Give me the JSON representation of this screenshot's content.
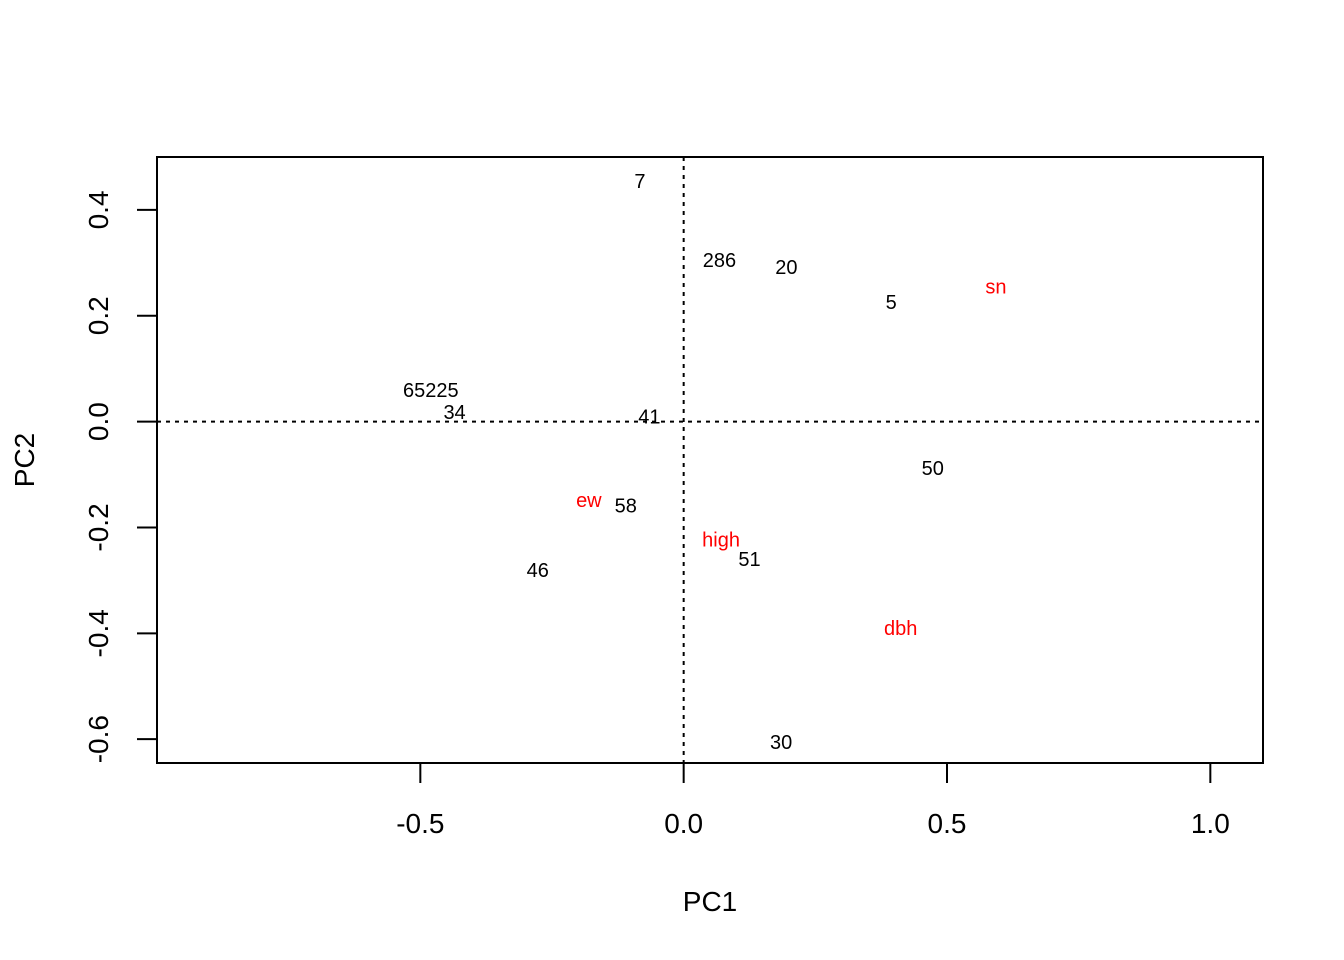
{
  "chart_data": {
    "type": "scatter",
    "title": "",
    "xlabel": "PC1",
    "ylabel": "PC2",
    "xlim": [
      -1.0,
      1.1
    ],
    "ylim": [
      -0.645,
      0.5
    ],
    "x_ticks": [
      -0.5,
      0.0,
      0.5,
      1.0
    ],
    "x_tick_labels": [
      "-0.5",
      "0.0",
      "0.5",
      "1.0"
    ],
    "y_ticks": [
      -0.6,
      -0.4,
      -0.2,
      0.0,
      0.2,
      0.4
    ],
    "y_tick_labels": [
      "-0.6",
      "-0.4",
      "-0.2",
      "0.0",
      "0.2",
      "0.4"
    ],
    "reference_lines": {
      "x": 0,
      "y": 0,
      "style": "dotted"
    },
    "colors": {
      "observation": "#000000",
      "variable": "#ff0000"
    },
    "series": [
      {
        "points": [
          {
            "label": "7",
            "x": -0.083,
            "y": 0.455
          },
          {
            "label": "286",
            "x": 0.068,
            "y": 0.305
          },
          {
            "label": "20",
            "x": 0.195,
            "y": 0.292
          },
          {
            "label": "5",
            "x": 0.394,
            "y": 0.226
          },
          {
            "label": "65225",
            "x": -0.48,
            "y": 0.06
          },
          {
            "label": "34",
            "x": -0.435,
            "y": 0.018
          },
          {
            "label": "41",
            "x": -0.065,
            "y": 0.01
          },
          {
            "label": "50",
            "x": 0.473,
            "y": -0.088
          },
          {
            "label": "58",
            "x": -0.11,
            "y": -0.158
          },
          {
            "label": "51",
            "x": 0.125,
            "y": -0.26
          },
          {
            "label": "46",
            "x": -0.277,
            "y": -0.28
          },
          {
            "label": "30",
            "x": 0.185,
            "y": -0.605
          }
        ]
      },
      {
        "points": [
          {
            "label": "sn",
            "x": 0.593,
            "y": 0.255
          },
          {
            "label": "ew",
            "x": -0.18,
            "y": -0.148
          },
          {
            "label": "high",
            "x": 0.071,
            "y": -0.223
          },
          {
            "label": "dbh",
            "x": 0.412,
            "y": -0.39
          }
        ]
      }
    ]
  }
}
